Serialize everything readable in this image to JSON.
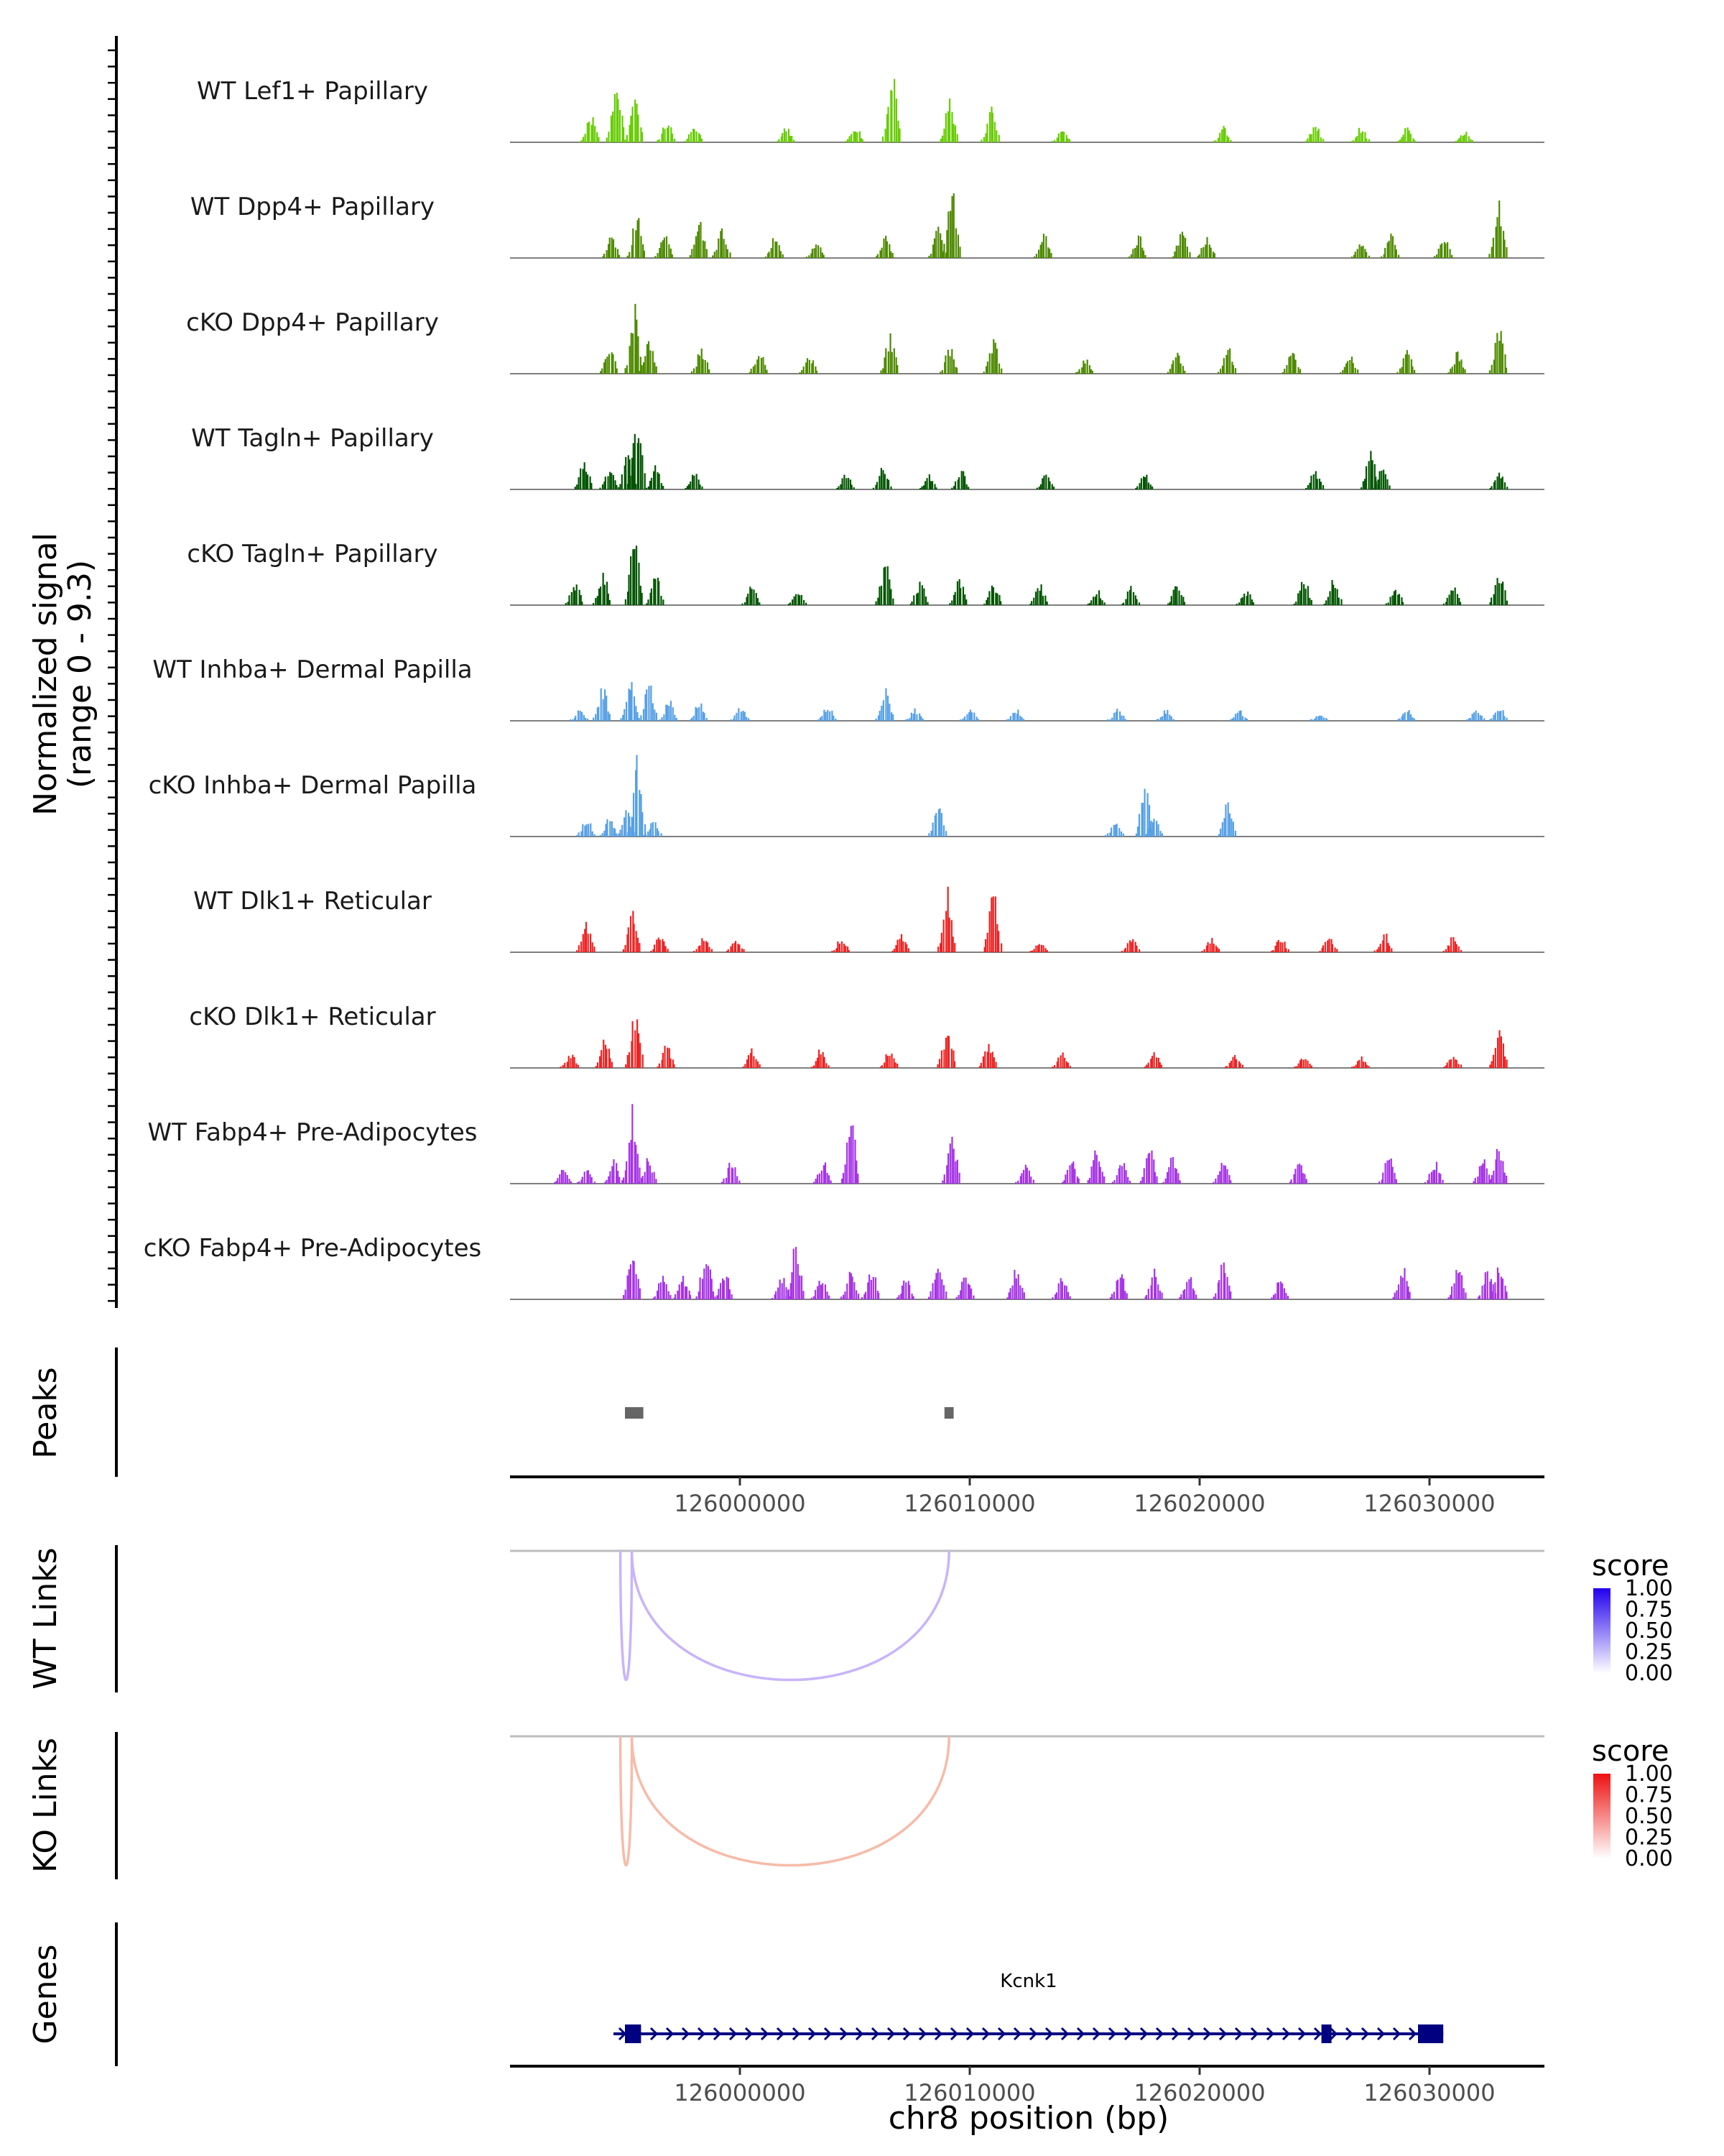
{
  "chart_data": {
    "type": "genome-browser",
    "region": {
      "chromosome": "chr8",
      "start": 125990000,
      "end": 126035000
    },
    "coverage": {
      "ylabel": "Normalized signal",
      "range_label": "(range 0 - 9.3)",
      "ylim": [
        0,
        9.3
      ],
      "tracks": [
        {
          "name": "WT Lef1+ Papillary",
          "color": "#66CC00",
          "peaks": [
            [
              125993500,
              0.35
            ],
            [
              125994600,
              0.9
            ],
            [
              125995400,
              0.6
            ],
            [
              125996800,
              0.3
            ],
            [
              125998000,
              0.25
            ],
            [
              126002000,
              0.2
            ],
            [
              126005000,
              0.2
            ],
            [
              126006600,
              0.85
            ],
            [
              126009100,
              0.55
            ],
            [
              126010900,
              0.45
            ],
            [
              126014000,
              0.2
            ],
            [
              126021000,
              0.2
            ],
            [
              126025000,
              0.25
            ],
            [
              126027000,
              0.2
            ],
            [
              126029000,
              0.2
            ],
            [
              126031500,
              0.15
            ]
          ]
        },
        {
          "name": "WT Dpp4+ Papillary",
          "color": "#4E8A00",
          "peaks": [
            [
              125994400,
              0.3
            ],
            [
              125995500,
              0.55
            ],
            [
              125996700,
              0.3
            ],
            [
              125998200,
              0.55
            ],
            [
              125999200,
              0.4
            ],
            [
              126001500,
              0.3
            ],
            [
              126003300,
              0.2
            ],
            [
              126006300,
              0.3
            ],
            [
              126008600,
              0.4
            ],
            [
              126009200,
              0.95
            ],
            [
              126013200,
              0.3
            ],
            [
              126017300,
              0.3
            ],
            [
              126019200,
              0.4
            ],
            [
              126020300,
              0.3
            ],
            [
              126027000,
              0.2
            ],
            [
              126028300,
              0.3
            ],
            [
              126030600,
              0.3
            ],
            [
              126033000,
              0.75
            ]
          ]
        },
        {
          "name": "cKO Dpp4+ Papillary",
          "color": "#4E8A00",
          "peaks": [
            [
              125994300,
              0.4
            ],
            [
              125995400,
              0.85
            ],
            [
              125996000,
              0.5
            ],
            [
              125998300,
              0.35
            ],
            [
              126000800,
              0.3
            ],
            [
              126003000,
              0.25
            ],
            [
              126006500,
              0.5
            ],
            [
              126009100,
              0.35
            ],
            [
              126011000,
              0.45
            ],
            [
              126015000,
              0.2
            ],
            [
              126019000,
              0.3
            ],
            [
              126021200,
              0.35
            ],
            [
              126024000,
              0.3
            ],
            [
              126026500,
              0.25
            ],
            [
              126029000,
              0.3
            ],
            [
              126031200,
              0.3
            ],
            [
              126033000,
              0.6
            ]
          ]
        },
        {
          "name": "WT Tagln+ Papillary",
          "color": "#005500",
          "peaks": [
            [
              125993200,
              0.4
            ],
            [
              125994300,
              0.3
            ],
            [
              125995100,
              0.55
            ],
            [
              125995500,
              1.0
            ],
            [
              125996300,
              0.3
            ],
            [
              125998000,
              0.25
            ],
            [
              126004600,
              0.2
            ],
            [
              126006200,
              0.3
            ],
            [
              126008200,
              0.2
            ],
            [
              126009600,
              0.25
            ],
            [
              126013300,
              0.25
            ],
            [
              126017600,
              0.2
            ],
            [
              126025000,
              0.25
            ],
            [
              126027400,
              0.5
            ],
            [
              126027900,
              0.3
            ],
            [
              126033000,
              0.25
            ]
          ]
        },
        {
          "name": "cKO Tagln+ Papillary",
          "color": "#005500",
          "peaks": [
            [
              125992800,
              0.3
            ],
            [
              125994000,
              0.45
            ],
            [
              125995400,
              0.95
            ],
            [
              125996300,
              0.45
            ],
            [
              126000500,
              0.25
            ],
            [
              126002500,
              0.2
            ],
            [
              126006300,
              0.55
            ],
            [
              126007800,
              0.3
            ],
            [
              126009500,
              0.35
            ],
            [
              126011000,
              0.3
            ],
            [
              126013000,
              0.3
            ],
            [
              126015500,
              0.2
            ],
            [
              126017000,
              0.25
            ],
            [
              126019000,
              0.3
            ],
            [
              126022000,
              0.2
            ],
            [
              126024500,
              0.35
            ],
            [
              126025800,
              0.35
            ],
            [
              126028500,
              0.25
            ],
            [
              126031000,
              0.25
            ],
            [
              126033000,
              0.45
            ]
          ]
        },
        {
          "name": "WT Inhba+ Dermal Papilla",
          "color": "#56A0E6",
          "peaks": [
            [
              125993000,
              0.15
            ],
            [
              125994000,
              0.45
            ],
            [
              125995200,
              0.55
            ],
            [
              125996000,
              0.5
            ],
            [
              125996900,
              0.3
            ],
            [
              125998200,
              0.25
            ],
            [
              126000000,
              0.2
            ],
            [
              126003800,
              0.2
            ],
            [
              126006300,
              0.45
            ],
            [
              126007600,
              0.15
            ],
            [
              126010000,
              0.15
            ],
            [
              126012000,
              0.15
            ],
            [
              126016400,
              0.15
            ],
            [
              126018500,
              0.15
            ],
            [
              126021700,
              0.15
            ],
            [
              126025200,
              0.1
            ],
            [
              126029000,
              0.15
            ],
            [
              126032000,
              0.15
            ],
            [
              126033000,
              0.2
            ]
          ]
        },
        {
          "name": "cKO Inhba+ Dermal Papilla",
          "color": "#56A0E6",
          "peaks": [
            [
              125993300,
              0.25
            ],
            [
              125994300,
              0.25
            ],
            [
              125995100,
              0.45
            ],
            [
              125995500,
              1.0
            ],
            [
              125996200,
              0.2
            ],
            [
              126008600,
              0.5
            ],
            [
              126016300,
              0.2
            ],
            [
              126017600,
              0.7
            ],
            [
              126018000,
              0.25
            ],
            [
              126021200,
              0.5
            ]
          ]
        },
        {
          "name": "WT Dlk1+ Reticular",
          "color": "#EE2222",
          "peaks": [
            [
              125993300,
              0.45
            ],
            [
              125995300,
              0.55
            ],
            [
              125996500,
              0.25
            ],
            [
              125998400,
              0.2
            ],
            [
              125999800,
              0.2
            ],
            [
              126004400,
              0.2
            ],
            [
              126007000,
              0.25
            ],
            [
              126009000,
              0.8
            ],
            [
              126011000,
              0.8
            ],
            [
              126013000,
              0.15
            ],
            [
              126017000,
              0.2
            ],
            [
              126020500,
              0.2
            ],
            [
              126023500,
              0.2
            ],
            [
              126025600,
              0.25
            ],
            [
              126028000,
              0.25
            ],
            [
              126031000,
              0.2
            ]
          ]
        },
        {
          "name": "cKO Dlk1+ Reticular",
          "color": "#EE2222",
          "peaks": [
            [
              125992600,
              0.2
            ],
            [
              125994100,
              0.45
            ],
            [
              125995400,
              0.8
            ],
            [
              125996800,
              0.3
            ],
            [
              126000500,
              0.25
            ],
            [
              126003500,
              0.25
            ],
            [
              126006500,
              0.25
            ],
            [
              126009000,
              0.55
            ],
            [
              126010800,
              0.35
            ],
            [
              126014000,
              0.2
            ],
            [
              126018000,
              0.2
            ],
            [
              126021500,
              0.2
            ],
            [
              126024500,
              0.15
            ],
            [
              126027000,
              0.15
            ],
            [
              126031000,
              0.2
            ],
            [
              126033000,
              0.55
            ]
          ]
        },
        {
          "name": "WT Fabp4+ Pre-Adipocytes",
          "color": "#A633E6",
          "peaks": [
            [
              125992300,
              0.2
            ],
            [
              125993300,
              0.2
            ],
            [
              125994500,
              0.3
            ],
            [
              125995300,
              1.0
            ],
            [
              125996000,
              0.35
            ],
            [
              125999600,
              0.3
            ],
            [
              126003600,
              0.3
            ],
            [
              126004800,
              0.8
            ],
            [
              126009200,
              0.7
            ],
            [
              126012400,
              0.3
            ],
            [
              126014400,
              0.3
            ],
            [
              126015500,
              0.5
            ],
            [
              126016600,
              0.3
            ],
            [
              126017800,
              0.5
            ],
            [
              126018800,
              0.35
            ],
            [
              126021000,
              0.3
            ],
            [
              126024300,
              0.3
            ],
            [
              126028200,
              0.4
            ],
            [
              126030200,
              0.3
            ],
            [
              126032300,
              0.35
            ],
            [
              126033000,
              0.55
            ]
          ]
        },
        {
          "name": "cKO Fabp4+ Pre-Adipocytes",
          "color": "#A633E6",
          "peaks": [
            [
              125995300,
              0.8
            ],
            [
              125996600,
              0.3
            ],
            [
              125997500,
              0.3
            ],
            [
              125998500,
              0.65
            ],
            [
              125999300,
              0.4
            ],
            [
              126001800,
              0.3
            ],
            [
              126002400,
              0.7
            ],
            [
              126003500,
              0.3
            ],
            [
              126004800,
              0.4
            ],
            [
              126005700,
              0.4
            ],
            [
              126007200,
              0.3
            ],
            [
              126008600,
              0.6
            ],
            [
              126009800,
              0.35
            ],
            [
              126012000,
              0.45
            ],
            [
              126014000,
              0.3
            ],
            [
              126016500,
              0.4
            ],
            [
              126018000,
              0.45
            ],
            [
              126019500,
              0.3
            ],
            [
              126021000,
              0.5
            ],
            [
              126023500,
              0.3
            ],
            [
              126028800,
              0.45
            ],
            [
              126031200,
              0.45
            ],
            [
              126032500,
              0.4
            ],
            [
              126033000,
              0.5
            ]
          ]
        }
      ]
    },
    "peaks": {
      "label": "Peaks",
      "color": "#666666",
      "regions": [
        [
          125995000,
          125995800
        ],
        [
          126008900,
          126009300
        ]
      ]
    },
    "x_axis": {
      "ticks": [
        126000000,
        126010000,
        126020000,
        126030000
      ],
      "tick_labels": [
        "126000000",
        "126010000",
        "126020000",
        "126030000"
      ]
    },
    "links": [
      {
        "label": "WT Links",
        "color": "#C8B4FA",
        "legend_title": "score",
        "legend_low": "#FFFFFF",
        "legend_high": "#2200EE",
        "legend_ticks": [
          "1.00",
          "0.75",
          "0.50",
          "0.25",
          "0.00"
        ],
        "arcs": [
          [
            125994800,
            125995300,
            0.25
          ],
          [
            125995300,
            126009100,
            0.25
          ]
        ]
      },
      {
        "label": "KO Links",
        "color": "#F7BBA8",
        "legend_title": "score",
        "legend_low": "#FFFFFF",
        "legend_high": "#EE1111",
        "legend_ticks": [
          "1.00",
          "0.75",
          "0.50",
          "0.25",
          "0.00"
        ],
        "arcs": [
          [
            125994800,
            125995300,
            0.25
          ],
          [
            125995300,
            126009100,
            0.25
          ]
        ]
      }
    ],
    "genes": {
      "label": "Genes",
      "color": "#000080",
      "gene_name": "Kcnk1",
      "span": [
        125994500,
        126030600
      ],
      "exons": [
        [
          125995000,
          125995700
        ],
        [
          126025300,
          126025700
        ],
        [
          126029500,
          126030600
        ]
      ]
    },
    "xlabel": "chr8 position (bp)"
  }
}
